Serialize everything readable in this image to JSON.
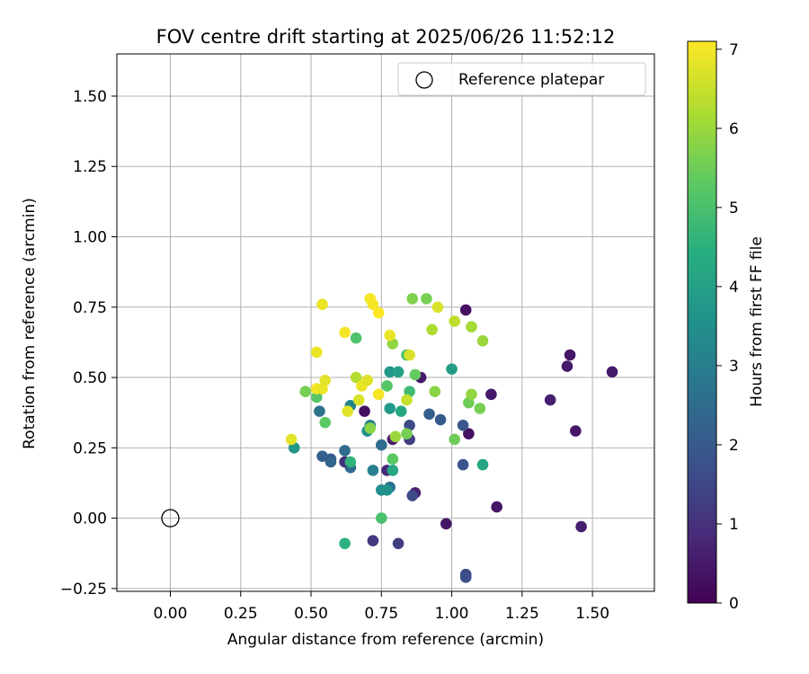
{
  "chart_data": {
    "type": "scatter",
    "title": "FOV centre drift starting at 2025/06/26 11:52:12",
    "xlabel": "Angular distance from reference (arcmin)",
    "ylabel": "Rotation from reference (arcmin)",
    "xlim": [
      -0.19,
      1.72
    ],
    "ylim": [
      -0.26,
      1.65
    ],
    "xticks": [
      0.0,
      0.25,
      0.5,
      0.75,
      1.0,
      1.25,
      1.5
    ],
    "xtick_labels": [
      "0.00",
      "0.25",
      "0.50",
      "0.75",
      "1.00",
      "1.25",
      "1.50"
    ],
    "yticks": [
      -0.25,
      0.0,
      0.25,
      0.5,
      0.75,
      1.0,
      1.25,
      1.5
    ],
    "ytick_labels": [
      "−0.25",
      "0.00",
      "0.25",
      "0.50",
      "0.75",
      "1.00",
      "1.25",
      "1.50"
    ],
    "grid": true,
    "legend": {
      "placement": "top-right",
      "entries": [
        "Reference platepar"
      ]
    },
    "reference_point": {
      "x": 0.0,
      "y": 0.0,
      "label": "Reference platepar"
    },
    "colorbar": {
      "label": "Hours from first FF file",
      "colormap": "viridis",
      "range": [
        0,
        7.1
      ],
      "ticks": [
        0,
        1,
        2,
        3,
        4,
        5,
        6,
        7
      ],
      "tick_labels": [
        "0",
        "1",
        "2",
        "3",
        "4",
        "5",
        "6",
        "7"
      ]
    },
    "points": [
      {
        "x": 1.57,
        "y": 0.52,
        "h": 0.5
      },
      {
        "x": 1.42,
        "y": 0.58,
        "h": 0.4
      },
      {
        "x": 1.41,
        "y": 0.54,
        "h": 0.5
      },
      {
        "x": 1.44,
        "y": 0.31,
        "h": 0.4
      },
      {
        "x": 1.35,
        "y": 0.42,
        "h": 0.6
      },
      {
        "x": 1.46,
        "y": -0.03,
        "h": 0.6
      },
      {
        "x": 1.16,
        "y": 0.04,
        "h": 0.4
      },
      {
        "x": 1.14,
        "y": 0.44,
        "h": 0.5
      },
      {
        "x": 1.05,
        "y": 0.74,
        "h": 0.3
      },
      {
        "x": 1.06,
        "y": 0.3,
        "h": 0.3
      },
      {
        "x": 1.05,
        "y": -0.2,
        "h": 1.6
      },
      {
        "x": 1.05,
        "y": -0.21,
        "h": 1.7
      },
      {
        "x": 1.04,
        "y": 0.33,
        "h": 1.9
      },
      {
        "x": 1.04,
        "y": 0.19,
        "h": 1.8
      },
      {
        "x": 0.98,
        "y": -0.02,
        "h": 0.4
      },
      {
        "x": 0.96,
        "y": 0.35,
        "h": 2.0
      },
      {
        "x": 0.92,
        "y": 0.37,
        "h": 2.1
      },
      {
        "x": 0.89,
        "y": 0.5,
        "h": 0.5
      },
      {
        "x": 0.87,
        "y": 0.09,
        "h": 0.6
      },
      {
        "x": 0.86,
        "y": 0.08,
        "h": 1.6
      },
      {
        "x": 0.85,
        "y": 0.33,
        "h": 1.6
      },
      {
        "x": 0.85,
        "y": 0.28,
        "h": 1.3
      },
      {
        "x": 0.81,
        "y": -0.09,
        "h": 1.3
      },
      {
        "x": 0.79,
        "y": 0.28,
        "h": 0.6
      },
      {
        "x": 0.77,
        "y": 0.17,
        "h": 0.8
      },
      {
        "x": 0.78,
        "y": 0.11,
        "h": 2.6
      },
      {
        "x": 0.75,
        "y": 0.26,
        "h": 2.5
      },
      {
        "x": 0.72,
        "y": -0.08,
        "h": 1.2
      },
      {
        "x": 0.72,
        "y": 0.17,
        "h": 3.0
      },
      {
        "x": 0.69,
        "y": 0.38,
        "h": 0.3
      },
      {
        "x": 0.64,
        "y": 0.18,
        "h": 2.5
      },
      {
        "x": 0.62,
        "y": 0.2,
        "h": 1.0
      },
      {
        "x": 0.62,
        "y": 0.24,
        "h": 2.5
      },
      {
        "x": 0.57,
        "y": 0.21,
        "h": 2.0
      },
      {
        "x": 0.57,
        "y": 0.2,
        "h": 2.3
      },
      {
        "x": 0.54,
        "y": 0.22,
        "h": 2.2
      },
      {
        "x": 0.53,
        "y": 0.38,
        "h": 2.7
      },
      {
        "x": 0.44,
        "y": 0.25,
        "h": 3.7
      },
      {
        "x": 0.64,
        "y": 0.4,
        "h": 3.2
      },
      {
        "x": 0.7,
        "y": 0.31,
        "h": 3.5
      },
      {
        "x": 0.71,
        "y": 0.33,
        "h": 3.0
      },
      {
        "x": 0.75,
        "y": 0.1,
        "h": 3.4
      },
      {
        "x": 0.77,
        "y": 0.1,
        "h": 3.6
      },
      {
        "x": 0.78,
        "y": 0.39,
        "h": 3.8
      },
      {
        "x": 0.78,
        "y": 0.52,
        "h": 3.7
      },
      {
        "x": 0.81,
        "y": 0.52,
        "h": 4.0
      },
      {
        "x": 0.82,
        "y": 0.38,
        "h": 4.2
      },
      {
        "x": 0.79,
        "y": 0.17,
        "h": 4.2
      },
      {
        "x": 1.0,
        "y": 0.53,
        "h": 3.9
      },
      {
        "x": 1.11,
        "y": 0.19,
        "h": 4.2
      },
      {
        "x": 0.62,
        "y": -0.09,
        "h": 4.5
      },
      {
        "x": 0.64,
        "y": 0.2,
        "h": 4.6
      },
      {
        "x": 0.75,
        "y": 0.0,
        "h": 5.0
      },
      {
        "x": 0.79,
        "y": 0.21,
        "h": 5.3
      },
      {
        "x": 0.77,
        "y": 0.47,
        "h": 5.2
      },
      {
        "x": 0.84,
        "y": 0.58,
        "h": 5.0
      },
      {
        "x": 0.85,
        "y": 0.45,
        "h": 4.8
      },
      {
        "x": 0.87,
        "y": 0.51,
        "h": 5.4
      },
      {
        "x": 0.52,
        "y": 0.43,
        "h": 5.2
      },
      {
        "x": 0.48,
        "y": 0.45,
        "h": 5.6
      },
      {
        "x": 0.55,
        "y": 0.34,
        "h": 5.3
      },
      {
        "x": 0.66,
        "y": 0.64,
        "h": 5.1
      },
      {
        "x": 0.71,
        "y": 0.32,
        "h": 5.8
      },
      {
        "x": 0.8,
        "y": 0.29,
        "h": 6.0
      },
      {
        "x": 0.84,
        "y": 0.3,
        "h": 5.6
      },
      {
        "x": 0.86,
        "y": 0.78,
        "h": 5.7
      },
      {
        "x": 0.91,
        "y": 0.78,
        "h": 5.6
      },
      {
        "x": 0.79,
        "y": 0.62,
        "h": 5.9
      },
      {
        "x": 0.94,
        "y": 0.45,
        "h": 5.8
      },
      {
        "x": 0.93,
        "y": 0.67,
        "h": 6.2
      },
      {
        "x": 1.01,
        "y": 0.28,
        "h": 5.5
      },
      {
        "x": 1.06,
        "y": 0.41,
        "h": 5.5
      },
      {
        "x": 1.07,
        "y": 0.44,
        "h": 5.9
      },
      {
        "x": 1.1,
        "y": 0.39,
        "h": 5.6
      },
      {
        "x": 1.11,
        "y": 0.63,
        "h": 6.0
      },
      {
        "x": 1.07,
        "y": 0.68,
        "h": 6.1
      },
      {
        "x": 1.01,
        "y": 0.7,
        "h": 6.4
      },
      {
        "x": 0.95,
        "y": 0.75,
        "h": 6.7
      },
      {
        "x": 0.66,
        "y": 0.5,
        "h": 6.3
      },
      {
        "x": 0.84,
        "y": 0.42,
        "h": 6.5
      },
      {
        "x": 0.85,
        "y": 0.58,
        "h": 6.7
      },
      {
        "x": 0.43,
        "y": 0.28,
        "h": 6.8
      },
      {
        "x": 0.52,
        "y": 0.46,
        "h": 7.0
      },
      {
        "x": 0.52,
        "y": 0.59,
        "h": 6.9
      },
      {
        "x": 0.54,
        "y": 0.46,
        "h": 6.9
      },
      {
        "x": 0.55,
        "y": 0.49,
        "h": 6.8
      },
      {
        "x": 0.54,
        "y": 0.76,
        "h": 6.9
      },
      {
        "x": 0.62,
        "y": 0.66,
        "h": 7.0
      },
      {
        "x": 0.63,
        "y": 0.38,
        "h": 6.8
      },
      {
        "x": 0.67,
        "y": 0.42,
        "h": 6.7
      },
      {
        "x": 0.68,
        "y": 0.47,
        "h": 6.9
      },
      {
        "x": 0.7,
        "y": 0.49,
        "h": 6.8
      },
      {
        "x": 0.71,
        "y": 0.78,
        "h": 7.0
      },
      {
        "x": 0.72,
        "y": 0.76,
        "h": 7.0
      },
      {
        "x": 0.74,
        "y": 0.73,
        "h": 7.1
      },
      {
        "x": 0.74,
        "y": 0.44,
        "h": 7.0
      },
      {
        "x": 0.78,
        "y": 0.65,
        "h": 6.9
      }
    ]
  }
}
